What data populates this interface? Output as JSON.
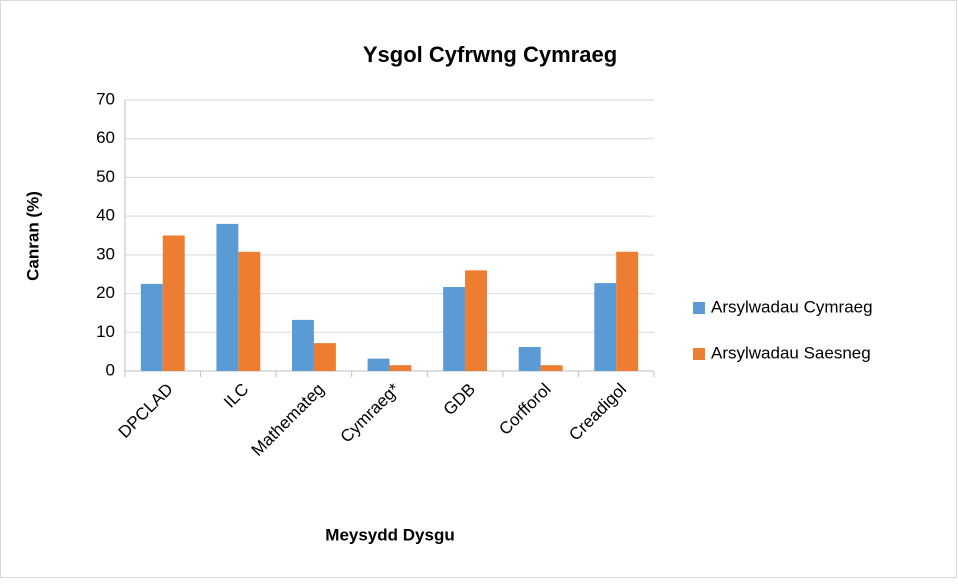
{
  "chart_data": {
    "type": "bar",
    "title": "Ysgol Cyfrwng Cymraeg",
    "x_label": "Meysydd Dysgu",
    "y_label": "Canran (%)",
    "categories": [
      "DPCLAD",
      "ILC",
      "Mathemateg",
      "Cymraeg*",
      "GDB",
      "Corfforol",
      "Creadigol"
    ],
    "series": [
      {
        "name": "Arsylwadau Cymraeg",
        "color": "#5b9bd5",
        "values": [
          22.5,
          38,
          13.2,
          3.2,
          21.7,
          6.2,
          22.7
        ]
      },
      {
        "name": "Arsylwadau Saesneg",
        "color": "#ed7d31",
        "values": [
          35,
          30.8,
          7.2,
          1.5,
          26,
          1.5,
          30.8
        ]
      }
    ],
    "ylim": [
      0,
      70
    ],
    "yticks": [
      0,
      10,
      20,
      30,
      40,
      50,
      60,
      70
    ],
    "grid": true,
    "legend": "right"
  }
}
